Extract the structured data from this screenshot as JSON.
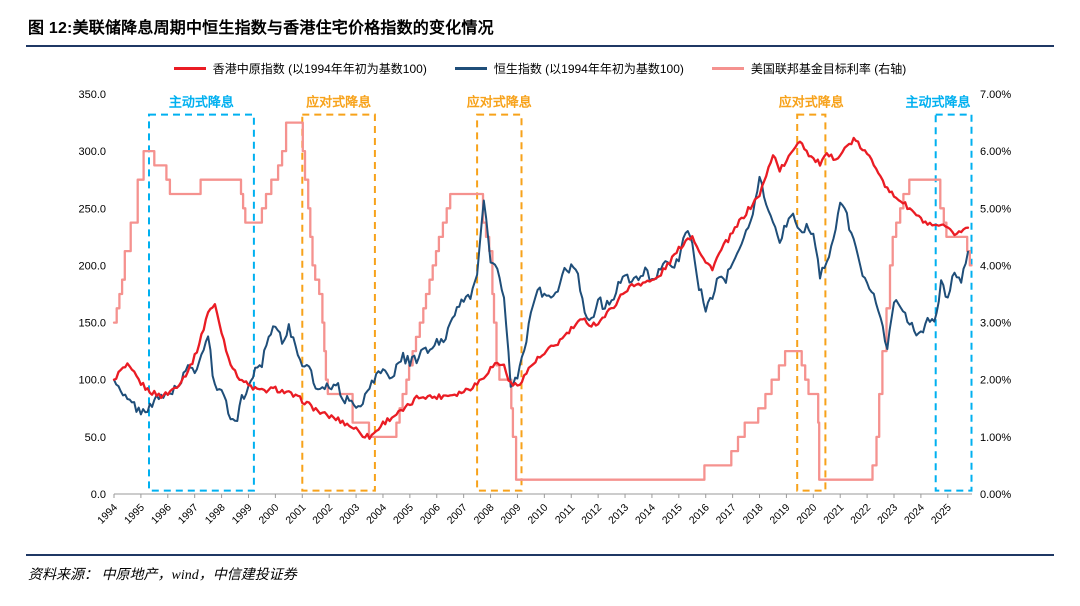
{
  "page": {
    "title": "图 12:美联储降息周期中恒生指数与香港住宅价格指数的变化情况",
    "source": "资料来源： 中原地产，wind，中信建投证券"
  },
  "chart_data": {
    "type": "line",
    "title": "图 12:美联储降息周期中恒生指数与香港住宅价格指数的变化情况",
    "grid": false,
    "legend_position": "top-center",
    "x_axis": {
      "range": [
        1994,
        2025.9
      ],
      "tick_labels": [
        "1994",
        "1995",
        "1996",
        "1997",
        "1998",
        "1999",
        "2000",
        "2001",
        "2002",
        "2003",
        "2004",
        "2005",
        "2006",
        "2007",
        "2008",
        "2009",
        "2010",
        "2011",
        "2012",
        "2013",
        "2014",
        "2015",
        "2016",
        "2017",
        "2018",
        "2019",
        "2020",
        "2021",
        "2022",
        "2023",
        "2024",
        "2025"
      ]
    },
    "y_axis_left": {
      "range": [
        0,
        350
      ],
      "tick_step": 50,
      "tick_labels": [
        "0.0",
        "50.0",
        "100.0",
        "150.0",
        "200.0",
        "250.0",
        "300.0",
        "350.0"
      ]
    },
    "y_axis_right": {
      "range": [
        0,
        7
      ],
      "tick_step": 1,
      "tick_labels": [
        "0.00%",
        "1.00%",
        "2.00%",
        "3.00%",
        "4.00%",
        "5.00%",
        "6.00%",
        "7.00%"
      ]
    },
    "series": [
      {
        "name": "香港中原指数 (以1994年年初为基数100)",
        "axis": "left",
        "color": "#ea1c24",
        "x_start": 1994.0,
        "x_step": 0.25,
        "values": [
          100,
          108,
          112,
          105,
          97,
          91,
          88,
          86,
          88,
          93,
          99,
          108,
          120,
          138,
          160,
          165,
          142,
          120,
          106,
          100,
          95,
          92,
          90,
          91,
          92,
          90,
          88,
          85,
          82,
          78,
          74,
          70,
          68,
          66,
          63,
          60,
          57,
          52,
          50,
          55,
          62,
          66,
          70,
          73,
          78,
          84,
          86,
          85,
          85,
          86,
          87,
          88,
          90,
          93,
          97,
          103,
          110,
          115,
          112,
          96,
          95,
          103,
          112,
          118,
          122,
          128,
          132,
          138,
          144,
          150,
          152,
          148,
          150,
          156,
          162,
          170,
          178,
          182,
          184,
          186,
          186,
          190,
          198,
          206,
          214,
          222,
          226,
          214,
          202,
          198,
          210,
          220,
          228,
          238,
          246,
          254,
          262,
          278,
          298,
          284,
          290,
          302,
          310,
          300,
          293,
          289,
          296,
          294,
          297,
          304,
          310,
          304,
          297,
          289,
          280,
          266,
          261,
          257,
          251,
          246,
          240,
          236,
          233,
          235,
          231,
          228,
          230,
          233
        ]
      },
      {
        "name": "恒生指数 (以1994年年初为基数100)",
        "axis": "left",
        "color": "#1f4e79",
        "x_start": 1994.0,
        "x_step": 0.25,
        "values": [
          100,
          88,
          82,
          78,
          70,
          76,
          82,
          84,
          88,
          92,
          98,
          112,
          108,
          122,
          138,
          92,
          95,
          72,
          60,
          84,
          92,
          110,
          115,
          140,
          148,
          135,
          145,
          128,
          115,
          110,
          92,
          95,
          95,
          97,
          85,
          80,
          78,
          82,
          92,
          105,
          108,
          102,
          110,
          120,
          115,
          118,
          125,
          126,
          132,
          135,
          147,
          167,
          168,
          172,
          195,
          255,
          205,
          196,
          170,
          95,
          100,
          128,
          155,
          180,
          175,
          168,
          180,
          194,
          198,
          190,
          160,
          152,
          170,
          164,
          168,
          185,
          192,
          183,
          190,
          196,
          188,
          193,
          200,
          198,
          206,
          232,
          218,
          182,
          162,
          172,
          192,
          188,
          200,
          213,
          230,
          246,
          276,
          255,
          240,
          218,
          237,
          243,
          228,
          234,
          228,
          192,
          205,
          220,
          258,
          243,
          220,
          198,
          185,
          178,
          152,
          126,
          170,
          162,
          152,
          144,
          140,
          152,
          148,
          185,
          172,
          196,
          186,
          212
        ]
      },
      {
        "name": "美国联邦基金目标利率 (右轴)",
        "axis": "right",
        "color": "#f5928f",
        "line": "step",
        "points": [
          [
            1994.0,
            3.0
          ],
          [
            1994.1,
            3.25
          ],
          [
            1994.2,
            3.5
          ],
          [
            1994.3,
            3.75
          ],
          [
            1994.4,
            4.25
          ],
          [
            1994.62,
            4.75
          ],
          [
            1994.88,
            5.5
          ],
          [
            1995.1,
            6.0
          ],
          [
            1995.5,
            5.75
          ],
          [
            1995.95,
            5.5
          ],
          [
            1996.08,
            5.25
          ],
          [
            1997.22,
            5.5
          ],
          [
            1998.72,
            5.25
          ],
          [
            1998.8,
            5.0
          ],
          [
            1998.88,
            4.75
          ],
          [
            1999.5,
            5.0
          ],
          [
            1999.65,
            5.25
          ],
          [
            1999.85,
            5.5
          ],
          [
            2000.1,
            5.75
          ],
          [
            2000.25,
            6.0
          ],
          [
            2000.4,
            6.5
          ],
          [
            2001.02,
            6.0
          ],
          [
            2001.1,
            5.5
          ],
          [
            2001.22,
            5.0
          ],
          [
            2001.3,
            4.5
          ],
          [
            2001.38,
            4.0
          ],
          [
            2001.48,
            3.75
          ],
          [
            2001.63,
            3.5
          ],
          [
            2001.75,
            3.0
          ],
          [
            2001.82,
            2.5
          ],
          [
            2001.88,
            2.0
          ],
          [
            2001.95,
            1.75
          ],
          [
            2002.87,
            1.25
          ],
          [
            2003.48,
            1.0
          ],
          [
            2004.5,
            1.25
          ],
          [
            2004.62,
            1.5
          ],
          [
            2004.73,
            1.75
          ],
          [
            2004.87,
            2.0
          ],
          [
            2004.97,
            2.25
          ],
          [
            2005.1,
            2.5
          ],
          [
            2005.23,
            2.75
          ],
          [
            2005.37,
            3.0
          ],
          [
            2005.5,
            3.25
          ],
          [
            2005.6,
            3.5
          ],
          [
            2005.73,
            3.75
          ],
          [
            2005.85,
            4.0
          ],
          [
            2005.97,
            4.25
          ],
          [
            2006.08,
            4.5
          ],
          [
            2006.23,
            4.75
          ],
          [
            2006.37,
            5.0
          ],
          [
            2006.5,
            5.25
          ],
          [
            2007.72,
            4.75
          ],
          [
            2007.83,
            4.5
          ],
          [
            2007.95,
            4.25
          ],
          [
            2008.07,
            3.5
          ],
          [
            2008.13,
            3.0
          ],
          [
            2008.22,
            2.25
          ],
          [
            2008.33,
            2.0
          ],
          [
            2008.77,
            1.5
          ],
          [
            2008.83,
            1.0
          ],
          [
            2008.95,
            0.25
          ],
          [
            2015.95,
            0.5
          ],
          [
            2016.95,
            0.75
          ],
          [
            2017.2,
            1.0
          ],
          [
            2017.45,
            1.25
          ],
          [
            2017.95,
            1.5
          ],
          [
            2018.22,
            1.75
          ],
          [
            2018.45,
            2.0
          ],
          [
            2018.72,
            2.25
          ],
          [
            2018.95,
            2.5
          ],
          [
            2019.57,
            2.25
          ],
          [
            2019.7,
            2.0
          ],
          [
            2019.82,
            1.75
          ],
          [
            2020.18,
            1.25
          ],
          [
            2020.22,
            0.25
          ],
          [
            2022.2,
            0.5
          ],
          [
            2022.35,
            1.0
          ],
          [
            2022.45,
            1.75
          ],
          [
            2022.57,
            2.5
          ],
          [
            2022.72,
            3.25
          ],
          [
            2022.85,
            4.0
          ],
          [
            2022.95,
            4.5
          ],
          [
            2023.08,
            4.75
          ],
          [
            2023.23,
            5.0
          ],
          [
            2023.35,
            5.25
          ],
          [
            2023.57,
            5.5
          ],
          [
            2024.72,
            5.0
          ],
          [
            2024.85,
            4.75
          ],
          [
            2024.95,
            4.5
          ],
          [
            2025.72,
            4.25
          ],
          [
            2025.82,
            4.0
          ]
        ]
      }
    ],
    "annotations": [
      {
        "label": "主动式降息",
        "color": "#00b0f0",
        "x_start": 1995.3,
        "x_end": 1999.2
      },
      {
        "label": "应对式降息",
        "color": "#f7a21a",
        "x_start": 2001.0,
        "x_end": 2003.7
      },
      {
        "label": "应对式降息",
        "color": "#f7a21a",
        "x_start": 2007.5,
        "x_end": 2009.15
      },
      {
        "label": "应对式降息",
        "color": "#f7a21a",
        "x_start": 2019.4,
        "x_end": 2020.45
      },
      {
        "label": "主动式降息",
        "color": "#00b0f0",
        "x_start": 2024.55,
        "x_end": 2025.88
      }
    ]
  }
}
